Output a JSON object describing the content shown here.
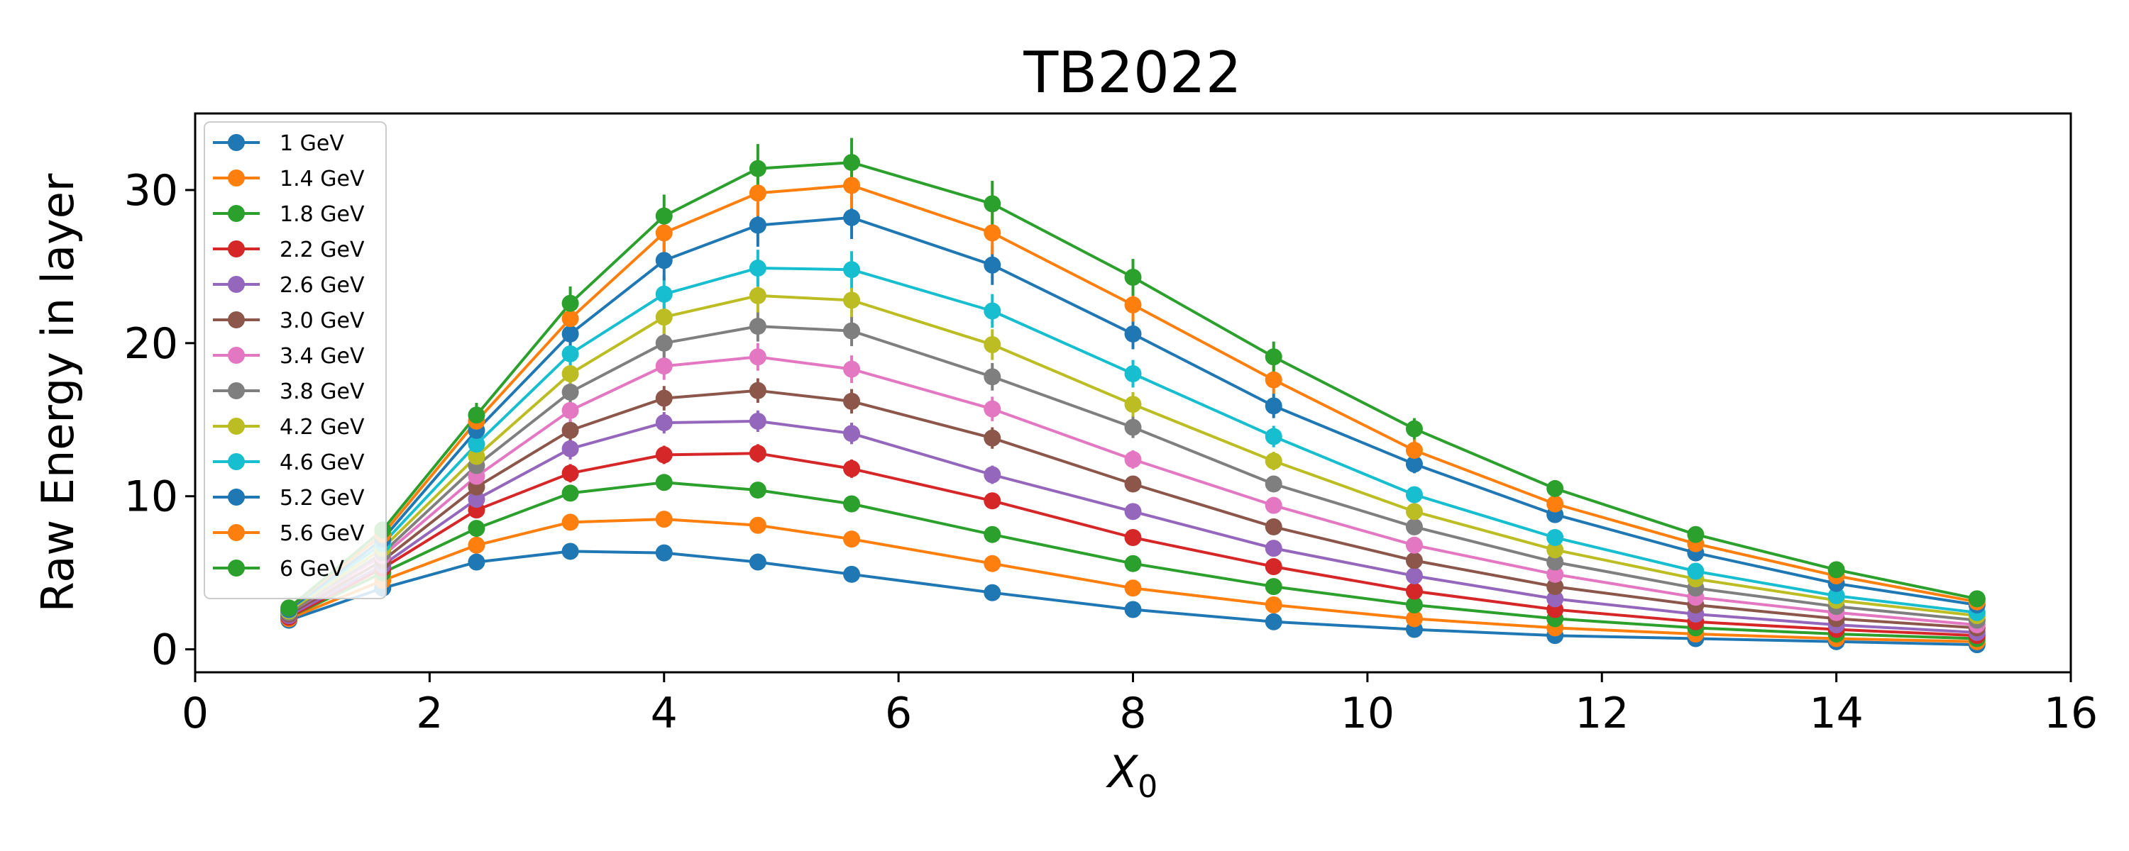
{
  "chart_data": {
    "type": "line",
    "title": "TB2022",
    "xlabel": "X",
    "xlabel_subscript": "0",
    "ylabel": "Raw Energy in layer",
    "xlim": [
      0,
      16
    ],
    "ylim": [
      -1.5,
      35
    ],
    "xticks": [
      0,
      2,
      4,
      6,
      8,
      10,
      12,
      14,
      16
    ],
    "yticks": [
      0,
      10,
      20,
      30
    ],
    "grid": false,
    "legend_position": "top-left",
    "markers": "circle",
    "error_bars": true,
    "x": [
      0.8,
      1.6,
      2.4,
      3.2,
      4.0,
      4.8,
      5.6,
      6.8,
      8.0,
      9.2,
      10.4,
      11.6,
      12.8,
      14.0,
      15.2
    ],
    "series": [
      {
        "name": "1 GeV",
        "color": "#1f77b4",
        "values": [
          1.9,
          4.0,
          5.7,
          6.4,
          6.3,
          5.7,
          4.9,
          3.7,
          2.6,
          1.8,
          1.3,
          0.9,
          0.7,
          0.5,
          0.3
        ],
        "errors": [
          0.2,
          0.3,
          0.3,
          0.3,
          0.3,
          0.3,
          0.3,
          0.2,
          0.2,
          0.1,
          0.1,
          0.1,
          0.1,
          0.1,
          0.1
        ]
      },
      {
        "name": "1.4 GeV",
        "color": "#ff7f0e",
        "values": [
          2.0,
          4.5,
          6.8,
          8.3,
          8.5,
          8.1,
          7.2,
          5.6,
          4.0,
          2.9,
          2.0,
          1.4,
          1.0,
          0.7,
          0.5
        ],
        "errors": [
          0.2,
          0.3,
          0.3,
          0.4,
          0.4,
          0.4,
          0.4,
          0.3,
          0.2,
          0.2,
          0.1,
          0.1,
          0.1,
          0.1,
          0.1
        ]
      },
      {
        "name": "1.8 GeV",
        "color": "#2ca02c",
        "values": [
          2.1,
          5.0,
          7.9,
          10.2,
          10.9,
          10.4,
          9.5,
          7.5,
          5.6,
          4.1,
          2.9,
          2.0,
          1.4,
          1.0,
          0.7
        ],
        "errors": [
          0.2,
          0.3,
          0.4,
          0.5,
          0.5,
          0.5,
          0.5,
          0.4,
          0.3,
          0.2,
          0.2,
          0.1,
          0.1,
          0.1,
          0.1
        ]
      },
      {
        "name": "2.2 GeV",
        "color": "#d62728",
        "values": [
          2.1,
          5.3,
          9.1,
          11.5,
          12.7,
          12.8,
          11.8,
          9.7,
          7.3,
          5.4,
          3.8,
          2.6,
          1.8,
          1.3,
          0.9
        ],
        "errors": [
          0.2,
          0.3,
          0.4,
          0.6,
          0.6,
          0.6,
          0.6,
          0.5,
          0.4,
          0.3,
          0.2,
          0.2,
          0.1,
          0.1,
          0.1
        ]
      },
      {
        "name": "2.6 GeV",
        "color": "#9467bd",
        "values": [
          2.2,
          5.5,
          9.8,
          13.1,
          14.8,
          14.9,
          14.1,
          11.4,
          9.0,
          6.6,
          4.8,
          3.3,
          2.3,
          1.6,
          1.1
        ],
        "errors": [
          0.2,
          0.3,
          0.5,
          0.7,
          0.7,
          0.7,
          0.7,
          0.6,
          0.5,
          0.3,
          0.3,
          0.2,
          0.1,
          0.1,
          0.1
        ]
      },
      {
        "name": "3.0 GeV",
        "color": "#8c564b",
        "values": [
          2.3,
          5.8,
          10.6,
          14.3,
          16.4,
          16.9,
          16.2,
          13.8,
          10.8,
          8.0,
          5.8,
          4.1,
          2.9,
          2.0,
          1.4
        ],
        "errors": [
          0.2,
          0.3,
          0.5,
          0.7,
          0.8,
          0.8,
          0.8,
          0.7,
          0.5,
          0.4,
          0.3,
          0.2,
          0.2,
          0.1,
          0.1
        ]
      },
      {
        "name": "3.4 GeV",
        "color": "#e377c2",
        "values": [
          2.4,
          6.1,
          11.3,
          15.6,
          18.5,
          19.1,
          18.3,
          15.7,
          12.4,
          9.4,
          6.8,
          4.9,
          3.4,
          2.4,
          1.6
        ],
        "errors": [
          0.2,
          0.3,
          0.6,
          0.8,
          0.9,
          0.9,
          0.9,
          0.8,
          0.6,
          0.5,
          0.3,
          0.3,
          0.2,
          0.1,
          0.1
        ]
      },
      {
        "name": "3.8 GeV",
        "color": "#7f7f7f",
        "values": [
          2.4,
          6.3,
          12.0,
          16.8,
          20.0,
          21.1,
          20.8,
          17.8,
          14.5,
          10.8,
          8.0,
          5.7,
          4.0,
          2.8,
          1.9
        ],
        "errors": [
          0.2,
          0.4,
          0.6,
          0.8,
          1.0,
          1.0,
          1.0,
          0.9,
          0.7,
          0.5,
          0.4,
          0.3,
          0.2,
          0.2,
          0.1
        ]
      },
      {
        "name": "4.2 GeV",
        "color": "#bcbd22",
        "values": [
          2.5,
          6.6,
          12.6,
          18.0,
          21.7,
          23.1,
          22.8,
          19.9,
          16.0,
          12.3,
          9.0,
          6.5,
          4.6,
          3.2,
          2.2
        ],
        "errors": [
          0.2,
          0.4,
          0.6,
          0.9,
          1.1,
          1.1,
          1.1,
          1.0,
          0.8,
          0.6,
          0.4,
          0.3,
          0.2,
          0.2,
          0.1
        ]
      },
      {
        "name": "4.6 GeV",
        "color": "#17becf",
        "values": [
          2.6,
          6.9,
          13.4,
          19.3,
          23.2,
          24.9,
          24.8,
          22.1,
          18.0,
          13.9,
          10.1,
          7.3,
          5.1,
          3.5,
          2.4
        ],
        "errors": [
          0.2,
          0.4,
          0.7,
          1.0,
          1.2,
          1.2,
          1.2,
          1.1,
          0.9,
          0.7,
          0.5,
          0.4,
          0.3,
          0.2,
          0.1
        ]
      },
      {
        "name": "5.2 GeV",
        "color": "#1f77b4",
        "values": [
          2.6,
          7.2,
          14.3,
          20.6,
          25.4,
          27.7,
          28.2,
          25.1,
          20.6,
          15.9,
          12.1,
          8.8,
          6.3,
          4.3,
          2.9
        ],
        "errors": [
          0.2,
          0.4,
          0.7,
          1.0,
          1.3,
          1.4,
          1.4,
          1.3,
          1.0,
          0.8,
          0.6,
          0.4,
          0.3,
          0.2,
          0.2
        ]
      },
      {
        "name": "5.6 GeV",
        "color": "#ff7f0e",
        "values": [
          2.7,
          7.5,
          14.9,
          21.6,
          27.2,
          29.8,
          30.3,
          27.2,
          22.5,
          17.6,
          13.0,
          9.5,
          6.9,
          4.8,
          3.1
        ],
        "errors": [
          0.2,
          0.4,
          0.8,
          1.1,
          1.4,
          1.5,
          1.5,
          1.4,
          1.1,
          0.9,
          0.7,
          0.5,
          0.3,
          0.2,
          0.2
        ]
      },
      {
        "name": "6 GeV",
        "color": "#2ca02c",
        "values": [
          2.7,
          7.8,
          15.3,
          22.6,
          28.3,
          31.4,
          31.8,
          29.1,
          24.3,
          19.1,
          14.4,
          10.5,
          7.5,
          5.2,
          3.3
        ],
        "errors": [
          0.2,
          0.4,
          0.8,
          1.1,
          1.4,
          1.6,
          1.6,
          1.5,
          1.2,
          1.0,
          0.7,
          0.5,
          0.4,
          0.3,
          0.2
        ]
      }
    ]
  }
}
